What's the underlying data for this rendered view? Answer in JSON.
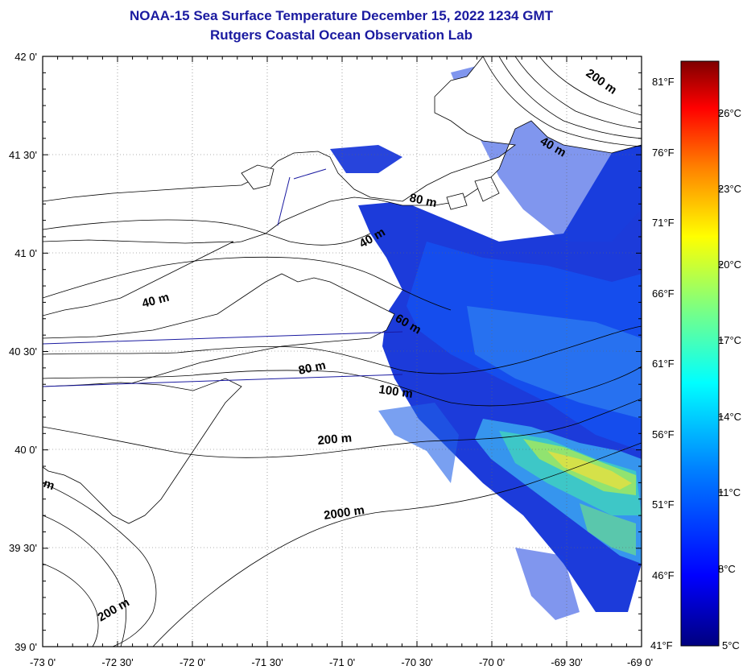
{
  "header": {
    "title": "NOAA-15 Sea Surface Temperature December 15, 2022 1234 GMT",
    "subtitle": "Rutgers Coastal Ocean Observation Lab"
  },
  "map": {
    "lat_labels": [
      "42 0'",
      "41 30'",
      "41 0'",
      "40 30'",
      "40 0'",
      "39 30'",
      "39 0'"
    ],
    "lon_labels": [
      "-73 0'",
      "-72 30'",
      "-72 0'",
      "-71 30'",
      "-71 0'",
      "-70 30'",
      "-70 0'",
      "-69 30'",
      "-69 0'"
    ],
    "contour_labels": [
      "200 m",
      "40 m",
      "80 m",
      "40 m",
      "40 m",
      "60 m",
      "80 m",
      "100 m",
      "200 m",
      "2000 m",
      "200 m",
      "m"
    ]
  },
  "colorbar": {
    "fahrenheit_labels": [
      "81°F",
      "76°F",
      "71°F",
      "66°F",
      "61°F",
      "56°F",
      "51°F",
      "46°F",
      "41°F"
    ],
    "celsius_labels": [
      "26°C",
      "23°C",
      "20°C",
      "17°C",
      "14°C",
      "11°C",
      "8°C",
      "5°C"
    ],
    "colors": [
      "#00007f",
      "#0000ff",
      "#007fff",
      "#00ffff",
      "#7fff7f",
      "#ffff00",
      "#ff7f00",
      "#ff0000",
      "#7f0000"
    ]
  }
}
